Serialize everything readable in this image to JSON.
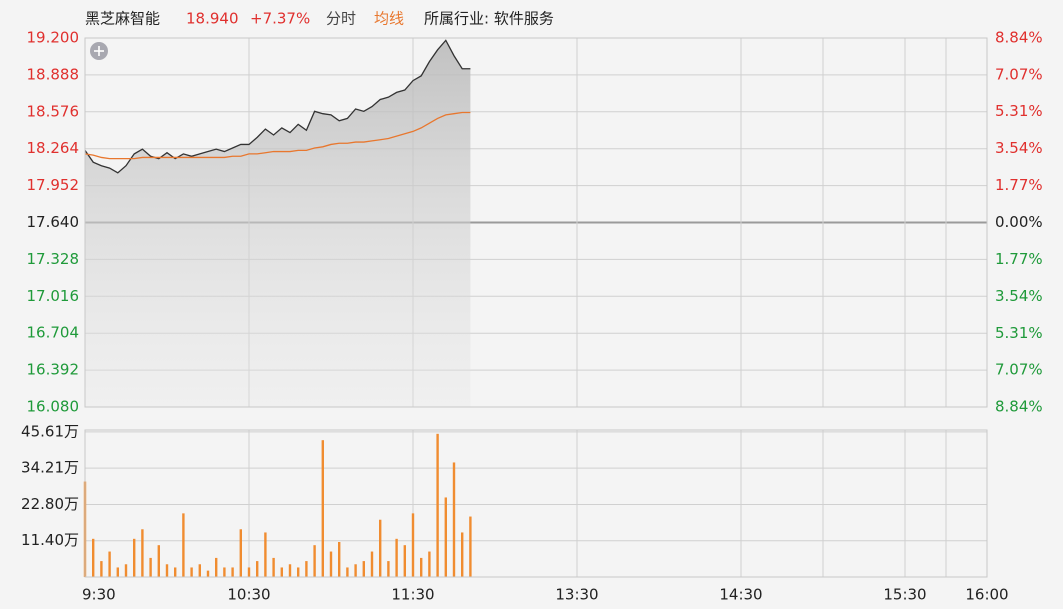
{
  "chart_data": {
    "type": "line",
    "title": "黑芝麻智能",
    "last_price": "18.940",
    "change_pct": "+7.37%",
    "industry": "所属行业: 软件服务",
    "x": [
      0,
      3,
      6,
      9,
      12,
      15,
      18,
      21,
      24,
      27,
      30,
      33,
      36,
      39,
      42,
      45,
      48,
      51,
      54,
      57,
      60,
      63,
      66,
      69,
      72,
      75,
      78,
      81,
      84,
      87,
      90,
      93,
      96,
      99,
      102,
      105,
      108,
      111,
      114,
      117,
      120,
      123,
      126,
      129,
      132,
      135,
      138,
      141
    ],
    "series": [
      {
        "name": "分时",
        "color": "#333333",
        "values": [
          18.25,
          18.15,
          18.12,
          18.1,
          18.06,
          18.12,
          18.22,
          18.26,
          18.2,
          18.18,
          18.23,
          18.18,
          18.22,
          18.2,
          18.22,
          18.24,
          18.26,
          18.24,
          18.27,
          18.3,
          18.3,
          18.36,
          18.43,
          18.38,
          18.44,
          18.4,
          18.47,
          18.42,
          18.58,
          18.56,
          18.55,
          18.5,
          18.52,
          18.6,
          18.58,
          18.62,
          18.68,
          18.7,
          18.74,
          18.76,
          18.84,
          18.88,
          19.0,
          19.1,
          19.18,
          19.05,
          18.94,
          18.94
        ]
      },
      {
        "name": "均线",
        "color": "#e8772e",
        "values": [
          18.22,
          18.21,
          18.19,
          18.18,
          18.18,
          18.18,
          18.18,
          18.19,
          18.19,
          18.19,
          18.19,
          18.19,
          18.19,
          18.19,
          18.19,
          18.19,
          18.19,
          18.19,
          18.2,
          18.2,
          18.22,
          18.22,
          18.23,
          18.24,
          18.24,
          18.24,
          18.25,
          18.25,
          18.27,
          18.28,
          18.3,
          18.31,
          18.31,
          18.32,
          18.32,
          18.33,
          18.34,
          18.35,
          18.37,
          18.39,
          18.41,
          18.44,
          18.48,
          18.52,
          18.55,
          18.56,
          18.57,
          18.57
        ]
      }
    ],
    "volume": {
      "color": "#f08c30",
      "values": [
        30,
        12,
        5,
        8,
        3,
        4,
        12,
        15,
        6,
        10,
        4,
        3,
        20,
        3,
        4,
        2,
        6,
        3,
        3,
        15,
        3,
        5,
        14,
        6,
        3,
        4,
        3,
        5,
        10,
        43,
        8,
        11,
        3,
        4,
        5,
        8,
        18,
        5,
        12,
        10,
        20,
        6,
        8,
        45,
        25,
        36,
        14,
        19
      ],
      "ylim": [
        0,
        46.2
      ],
      "yticks": [
        {
          "value": 11.4,
          "label": "11.40万"
        },
        {
          "value": 22.8,
          "label": "22.80万"
        },
        {
          "value": 34.21,
          "label": "34.21万"
        },
        {
          "value": 45.61,
          "label": "45.61万"
        }
      ]
    },
    "xlim": [
      0,
      330
    ],
    "xticks": [
      {
        "value": 0,
        "label": "9:30"
      },
      {
        "value": 60,
        "label": "10:30"
      },
      {
        "value": 120,
        "label": "11:30"
      },
      {
        "value": 180,
        "label": "13:30"
      },
      {
        "value": 240,
        "label": "14:30"
      },
      {
        "value": 300,
        "label": "15:30"
      },
      {
        "value": 330,
        "label": "16:00"
      }
    ],
    "ylim": [
      16.08,
      19.2
    ],
    "yticks": [
      {
        "value": 19.2,
        "label": "19.200"
      },
      {
        "value": 18.888,
        "label": "18.888"
      },
      {
        "value": 18.576,
        "label": "18.576"
      },
      {
        "value": 18.264,
        "label": "18.264"
      },
      {
        "value": 17.952,
        "label": "17.952"
      },
      {
        "value": 17.64,
        "label": "17.640"
      },
      {
        "value": 17.328,
        "label": "17.328"
      },
      {
        "value": 17.016,
        "label": "17.016"
      },
      {
        "value": 16.704,
        "label": "16.704"
      },
      {
        "value": 16.392,
        "label": "16.392"
      },
      {
        "value": 16.08,
        "label": "16.080"
      }
    ],
    "y2lim": [
      -8.84,
      8.84
    ],
    "y2ticks": [
      {
        "value": 8.84,
        "label": "8.84%"
      },
      {
        "value": 7.07,
        "label": "7.07%"
      },
      {
        "value": 5.31,
        "label": "5.31%"
      },
      {
        "value": 3.54,
        "label": "3.54%"
      },
      {
        "value": 1.77,
        "label": "1.77%"
      },
      {
        "value": 0,
        "label": "0.00%"
      },
      {
        "value": -1.77,
        "label": "1.77%"
      },
      {
        "value": -3.54,
        "label": "3.54%"
      },
      {
        "value": -5.31,
        "label": "5.31%"
      },
      {
        "value": -7.07,
        "label": "7.07%"
      },
      {
        "value": -8.84,
        "label": "8.84%"
      }
    ],
    "up_color": "#e0302e",
    "down_color": "#1f9a3a",
    "grid": true
  }
}
